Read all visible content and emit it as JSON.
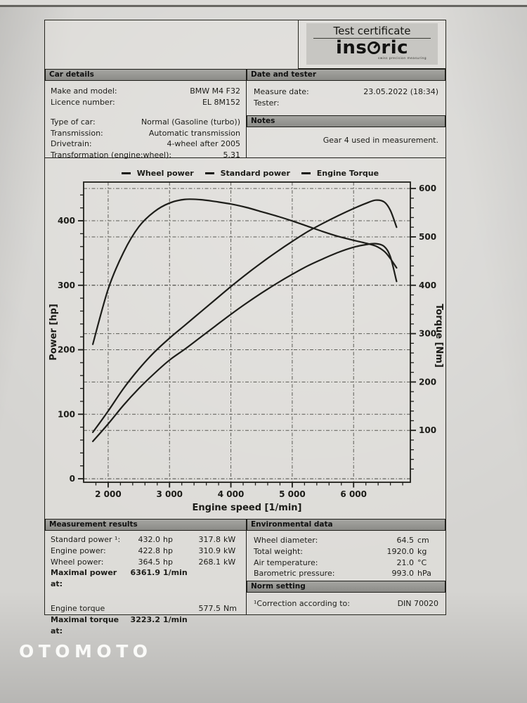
{
  "watermark": "OTOMOTO",
  "header": {
    "title": "Test certificate",
    "brand_prefix": "ins",
    "brand_suffix": "ric",
    "tagline": "swiss precision measuring"
  },
  "car_details": {
    "title": "Car details",
    "rows": [
      {
        "label": "Make and model:",
        "value": "BMW M4 F32"
      },
      {
        "label": "Licence number:",
        "value": "EL 8M152"
      },
      {
        "gap": true
      },
      {
        "label": "Type of car:",
        "value": "Normal (Gasoline (turbo))"
      },
      {
        "label": "Transmission:",
        "value": "Automatic transmission"
      },
      {
        "label": "Drivetrain:",
        "value": "4-wheel after 2005"
      },
      {
        "label": "Transformation (engine:wheel):",
        "value": "5.31"
      }
    ]
  },
  "date_tester": {
    "title": "Date and tester",
    "rows": [
      {
        "label": "Measure date:",
        "value": "23.05.2022 (18:34)"
      },
      {
        "label": "Tester:",
        "value": ""
      }
    ]
  },
  "notes": {
    "title": "Notes",
    "text": "Gear 4 used in measurement."
  },
  "chart_data": {
    "type": "line",
    "xlabel": "Engine speed [1/min]",
    "ylabel_left": "Power [hp]",
    "ylabel_right": "Torque [Nm]",
    "xlim": [
      1600,
      6925
    ],
    "ylim_left": [
      0,
      460
    ],
    "ylim_right": [
      0,
      613.3
    ],
    "x_ticks": [
      2000,
      3000,
      4000,
      5000,
      6000
    ],
    "x_tick_labels": [
      "2 000",
      "3 000",
      "4 000",
      "5 000",
      "6 000"
    ],
    "yticks_left": [
      0,
      100,
      200,
      300,
      400
    ],
    "yticks_right": [
      100,
      200,
      300,
      400,
      500,
      600
    ],
    "x_minor_step": 200,
    "left_minor_step": 20,
    "right_minor_step": 20,
    "grid": "dashed, both y-axes and x majors",
    "legend_position": "top-center",
    "x": [
      1750,
      2000,
      2250,
      2500,
      2750,
      3000,
      3250,
      3500,
      3750,
      4000,
      4250,
      4500,
      4750,
      5000,
      5250,
      5500,
      5750,
      6000,
      6200,
      6362,
      6500,
      6600,
      6700
    ],
    "series": [
      {
        "name": "Wheel power",
        "axis": "left",
        "values": [
          58,
          85,
          114,
          140,
          163,
          184,
          201,
          219,
          237,
          255,
          272,
          288,
          303,
          317,
          330,
          341,
          351,
          359,
          363,
          364.5,
          360,
          344,
          306
        ]
      },
      {
        "name": "Standard power",
        "axis": "left",
        "values": [
          72,
          105,
          140,
          170,
          196,
          218,
          238,
          258,
          278,
          298,
          317,
          335,
          352,
          368,
          383,
          396,
          408,
          419,
          427,
          432,
          429,
          416,
          390
        ]
      },
      {
        "name": "Engine Torque",
        "axis": "right",
        "values": [
          278,
          392,
          468,
          521,
          552,
          570,
          577.5,
          577,
          573,
          568,
          561,
          552,
          543,
          533,
          522,
          511,
          501,
          493,
          487,
          481,
          470,
          455,
          436
        ]
      }
    ]
  },
  "measurement_results": {
    "title": "Measurement results",
    "rows": [
      {
        "label": "Standard power ¹:",
        "value1": "432.0",
        "unit1": "hp",
        "value2": "317.8",
        "unit2": "kW"
      },
      {
        "label": "Engine power:",
        "value1": "422.8",
        "unit1": "hp",
        "value2": "310.9",
        "unit2": "kW"
      },
      {
        "label": "Wheel power:",
        "value1": "364.5",
        "unit1": "hp",
        "value2": "268.1",
        "unit2": "kW"
      },
      {
        "label": "Maximal power at:",
        "value1": "6361.9",
        "unit1": "1/min",
        "bold": true
      },
      {
        "gap": true
      },
      {
        "label": "Engine torque",
        "value2": "577.5",
        "unit2": "Nm"
      },
      {
        "label": "Maximal torque at:",
        "value1": "3223.2",
        "unit1": "1/min",
        "bold": true
      }
    ]
  },
  "environmental_data": {
    "title": "Environmental data",
    "rows": [
      {
        "label": "Wheel diameter:",
        "value": "64.5",
        "unit": "cm"
      },
      {
        "label": "Total weight:",
        "value": "1920.0",
        "unit": "kg"
      },
      {
        "label": "Air temperature:",
        "value": "21.0",
        "unit": "°C"
      },
      {
        "label": "Barometric pressure:",
        "value": "993.0",
        "unit": "hPa"
      }
    ]
  },
  "norm_setting": {
    "title": "Norm setting",
    "rows": [
      {
        "label": "¹Correction according to:",
        "value": "DIN 70020"
      }
    ]
  }
}
